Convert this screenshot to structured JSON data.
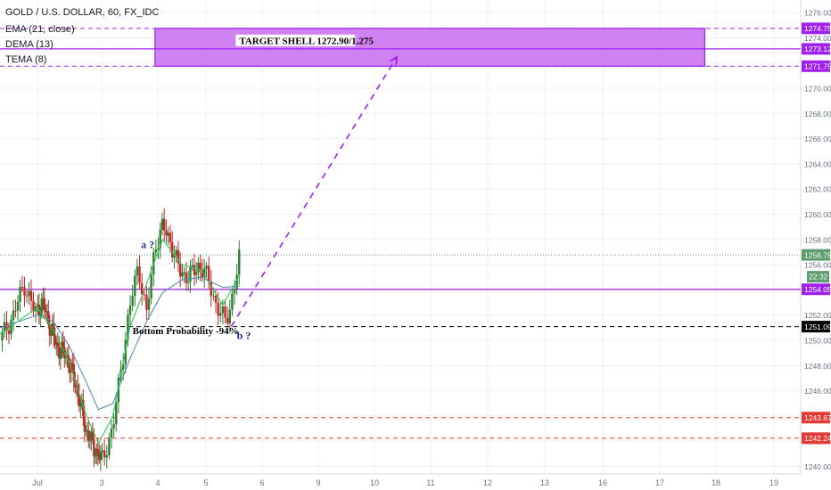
{
  "header": {
    "symbol_line": "GOLD / U.S. DOLLAR, 60, FX_IDC",
    "indicators": [
      "EMA (21, close)",
      "DEMA (13)",
      "TEMA (8)"
    ]
  },
  "colors": {
    "purple": "#a020f0",
    "purple_fill": "#c86cf0",
    "ema_line": "#5b8bb0",
    "green_line": "#31c85a",
    "up_candle": "#2e7d32",
    "down_candle": "#c62828",
    "grid": "#eef0f3",
    "red_level": "#e53935",
    "black_level": "#000000",
    "price_badge": "#5e9e6e"
  },
  "chart_data": {
    "type": "candlestick",
    "title": "GOLD / U.S. DOLLAR, 60, FX_IDC",
    "ylim": [
      1239.4,
      1277.0
    ],
    "y_ticks": [
      1240.0,
      1242.0,
      1244.0,
      1246.0,
      1248.0,
      1250.0,
      1252.0,
      1254.0,
      1256.0,
      1258.0,
      1260.0,
      1262.0,
      1264.0,
      1266.0,
      1268.0,
      1270.0,
      1272.0,
      1274.0,
      1276.0
    ],
    "x_axis_day_range": [
      0.3,
      19.0
    ],
    "x_ticks": [
      {
        "day": 1,
        "label": "Jul"
      },
      {
        "day": 3,
        "label": "3"
      },
      {
        "day": 4,
        "label": "4"
      },
      {
        "day": 5,
        "label": "5"
      },
      {
        "day": 6,
        "label": "6"
      },
      {
        "day": 9,
        "label": "9"
      },
      {
        "day": 10,
        "label": "10"
      },
      {
        "day": 11,
        "label": "11"
      },
      {
        "day": 12,
        "label": "12"
      },
      {
        "day": 13,
        "label": "13"
      },
      {
        "day": 16,
        "label": "16"
      },
      {
        "day": 17,
        "label": "17"
      },
      {
        "day": 18,
        "label": "18"
      },
      {
        "day": 19,
        "label": "19"
      }
    ],
    "price_series": [
      {
        "day": 0.3,
        "price": 1250.0
      },
      {
        "day": 0.55,
        "price": 1252.0
      },
      {
        "day": 0.75,
        "price": 1254.5
      },
      {
        "day": 0.95,
        "price": 1252.2
      },
      {
        "day": 1.15,
        "price": 1253.0
      },
      {
        "day": 1.35,
        "price": 1251.5
      },
      {
        "day": 1.6,
        "price": 1249.5
      },
      {
        "day": 1.9,
        "price": 1248.8
      },
      {
        "day": 2.2,
        "price": 1246.5
      },
      {
        "day": 2.5,
        "price": 1243.0
      },
      {
        "day": 2.75,
        "price": 1241.5
      },
      {
        "day": 3.0,
        "price": 1240.5
      },
      {
        "day": 3.2,
        "price": 1243.0
      },
      {
        "day": 3.35,
        "price": 1248.0
      },
      {
        "day": 3.5,
        "price": 1252.5
      },
      {
        "day": 3.65,
        "price": 1256.0
      },
      {
        "day": 3.8,
        "price": 1252.0
      },
      {
        "day": 3.95,
        "price": 1257.5
      },
      {
        "day": 4.1,
        "price": 1259.0
      },
      {
        "day": 4.25,
        "price": 1258.0
      },
      {
        "day": 4.45,
        "price": 1255.5
      },
      {
        "day": 4.65,
        "price": 1255.0
      },
      {
        "day": 4.85,
        "price": 1256.0
      },
      {
        "day": 5.05,
        "price": 1254.8
      },
      {
        "day": 5.2,
        "price": 1252.5
      },
      {
        "day": 5.35,
        "price": 1251.5
      },
      {
        "day": 5.5,
        "price": 1254.0
      },
      {
        "day": 5.6,
        "price": 1256.8
      }
    ],
    "ema_21": [
      {
        "day": 0.3,
        "price": 1251.0
      },
      {
        "day": 1.0,
        "price": 1252.0
      },
      {
        "day": 1.5,
        "price": 1251.5
      },
      {
        "day": 2.0,
        "price": 1249.5
      },
      {
        "day": 2.5,
        "price": 1246.8
      },
      {
        "day": 2.9,
        "price": 1244.5
      },
      {
        "day": 3.2,
        "price": 1245.0
      },
      {
        "day": 3.5,
        "price": 1248.5
      },
      {
        "day": 3.8,
        "price": 1251.5
      },
      {
        "day": 4.1,
        "price": 1253.8
      },
      {
        "day": 4.5,
        "price": 1254.8
      },
      {
        "day": 4.9,
        "price": 1255.0
      },
      {
        "day": 5.3,
        "price": 1254.2
      },
      {
        "day": 5.6,
        "price": 1254.3
      }
    ],
    "tema_8": [
      {
        "day": 0.3,
        "price": 1250.5
      },
      {
        "day": 1.0,
        "price": 1252.6
      },
      {
        "day": 1.5,
        "price": 1250.8
      },
      {
        "day": 2.0,
        "price": 1248.2
      },
      {
        "day": 2.5,
        "price": 1244.2
      },
      {
        "day": 2.9,
        "price": 1241.8
      },
      {
        "day": 3.2,
        "price": 1244.0
      },
      {
        "day": 3.5,
        "price": 1251.0
      },
      {
        "day": 3.8,
        "price": 1254.5
      },
      {
        "day": 4.1,
        "price": 1258.0
      },
      {
        "day": 4.5,
        "price": 1256.0
      },
      {
        "day": 4.9,
        "price": 1255.6
      },
      {
        "day": 5.3,
        "price": 1252.8
      },
      {
        "day": 5.6,
        "price": 1255.2
      }
    ],
    "horizontal_levels": [
      {
        "price": 1274.75,
        "label": "1274.75",
        "style": "dashed",
        "color": "#a020f0"
      },
      {
        "price": 1273.12,
        "label": "1273.12",
        "style": "solid",
        "color": "#a020f0"
      },
      {
        "price": 1271.75,
        "label": "1271.75",
        "style": "dashed",
        "color": "#a020f0"
      },
      {
        "price": 1254.05,
        "label": "1254.05",
        "style": "solid",
        "color": "#a020f0"
      },
      {
        "price": 1251.09,
        "label": "1251.09",
        "style": "dashed",
        "color": "#000000"
      },
      {
        "price": 1243.87,
        "label": "1243.87",
        "style": "dashed",
        "color": "#e53935"
      },
      {
        "price": 1242.24,
        "label": "1242.24",
        "style": "dashed",
        "color": "#e53935"
      }
    ],
    "current_price": {
      "price": 1256.78,
      "label": "1256.78",
      "countdown": "22:32"
    },
    "target_box": {
      "day_start": 3.95,
      "day_end": 17.8,
      "price_top": 1274.75,
      "price_bottom": 1271.75,
      "label": "TARGET SHELL 1272.90/1.275"
    },
    "projection_arrow": {
      "from_day": 5.45,
      "from_price": 1251.1,
      "to_day": 10.4,
      "to_price": 1272.5
    },
    "annotations": [
      {
        "text": "a ?",
        "day": 3.7,
        "price": 1257.3,
        "color": "#1a2a9a"
      },
      {
        "text": "b ?",
        "day": 5.55,
        "price": 1250.1,
        "color": "#1a2a9a"
      },
      {
        "text": "Bottom Probability -94%",
        "day": 3.55,
        "price": 1250.5,
        "color": "#000000"
      }
    ]
  }
}
